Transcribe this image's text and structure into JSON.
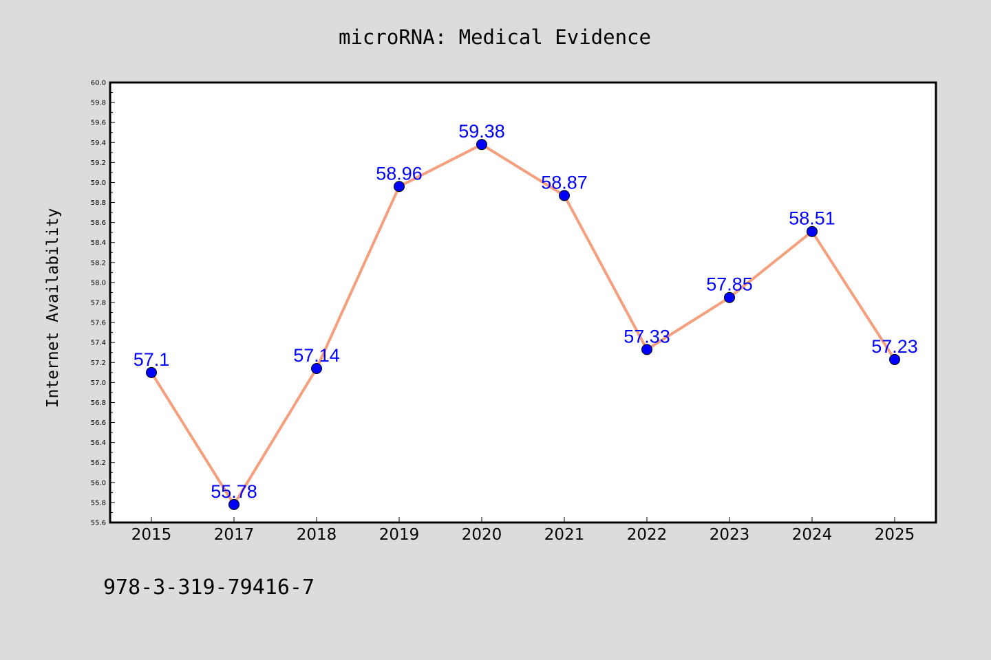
{
  "chart_data": {
    "type": "line",
    "title": "microRNA: Medical Evidence",
    "xlabel": "",
    "ylabel": "Internet Availability",
    "categories": [
      "2015",
      "2017",
      "2018",
      "2019",
      "2020",
      "2021",
      "2022",
      "2023",
      "2024",
      "2025"
    ],
    "series": [
      {
        "values": [
          57.1,
          55.78,
          57.14,
          58.96,
          59.38,
          58.87,
          57.33,
          57.85,
          58.51,
          57.23
        ],
        "labels": [
          "57.1",
          "55.78",
          "57.14",
          "58.96",
          "59.38",
          "58.87",
          "57.33",
          "57.85",
          "58.51",
          "57.23"
        ],
        "line_color": "#f4a07e",
        "marker_color": "#0000ff",
        "label_color": "#0000ff"
      }
    ],
    "ylim": [
      55.6,
      60.0
    ],
    "yticks": [
      "55.6",
      "55.8",
      "56.0",
      "56.2",
      "56.4",
      "56.6",
      "56.8",
      "57.0",
      "57.2",
      "57.4",
      "57.6",
      "57.8",
      "58.0",
      "58.2",
      "58.4",
      "58.6",
      "58.8",
      "59.0",
      "59.2",
      "59.4",
      "59.6",
      "59.8",
      "60.0"
    ],
    "grid": false,
    "legend": "none",
    "background": "#dcdcdc",
    "plot_background": "#ffffff"
  },
  "footer": {
    "text": "978-3-319-79416-7"
  }
}
